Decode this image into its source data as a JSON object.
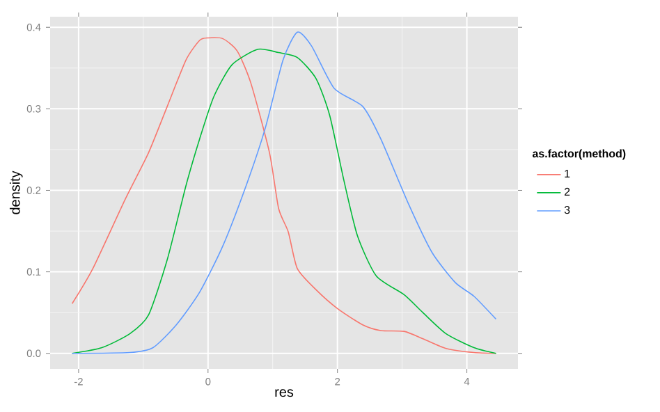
{
  "chart_data": {
    "type": "line",
    "xlabel": "res",
    "ylabel": "density",
    "legend_title": "as.factor(method)",
    "legend": "right",
    "grid": true,
    "xlim": [
      -2.44,
      4.79
    ],
    "ylim": [
      -0.019,
      0.413
    ],
    "xticks": [
      -2,
      0,
      2,
      4
    ],
    "yticks": [
      {
        "value": 0,
        "label": "0.0"
      },
      0.1,
      0.2,
      0.3,
      0.4
    ],
    "series": [
      {
        "name": "1",
        "color": "#f8766d",
        "x": [
          -2.1,
          -1.78,
          -1.28,
          -0.92,
          -0.63,
          -0.34,
          -0.13,
          0,
          0.23,
          0.45,
          0.66,
          0.95,
          1.09,
          1.24,
          1.38,
          1.67,
          2.0,
          2.39,
          2.67,
          3.03,
          3.32,
          3.68,
          4.11,
          4.45
        ],
        "values": [
          0.061,
          0.104,
          0.189,
          0.246,
          0.303,
          0.36,
          0.384,
          0.387,
          0.386,
          0.371,
          0.332,
          0.246,
          0.178,
          0.149,
          0.104,
          0.078,
          0.055,
          0.035,
          0.028,
          0.027,
          0.018,
          0.006,
          0.001,
          0
        ]
      },
      {
        "name": "2",
        "color": "#00ba38",
        "x": [
          -2.1,
          -1.64,
          -1.21,
          -0.92,
          -0.63,
          -0.34,
          -0.13,
          0.09,
          0.37,
          0.77,
          1.09,
          1.38,
          1.67,
          1.88,
          2.1,
          2.31,
          2.6,
          3.03,
          3.32,
          3.68,
          4.11,
          4.45
        ],
        "values": [
          0,
          0.007,
          0.024,
          0.047,
          0.115,
          0.206,
          0.263,
          0.315,
          0.354,
          0.373,
          0.369,
          0.363,
          0.337,
          0.292,
          0.212,
          0.144,
          0.095,
          0.072,
          0.05,
          0.024,
          0.007,
          0
        ]
      },
      {
        "name": "3",
        "color": "#619cff",
        "x": [
          -2.1,
          -1.21,
          -0.85,
          -0.49,
          -0.13,
          0.23,
          0.59,
          0.88,
          1.16,
          1.38,
          1.6,
          1.95,
          2.39,
          2.67,
          3.1,
          3.46,
          3.82,
          4.11,
          4.45
        ],
        "values": [
          0,
          0.001,
          0.007,
          0.035,
          0.075,
          0.132,
          0.206,
          0.275,
          0.36,
          0.394,
          0.377,
          0.325,
          0.303,
          0.263,
          0.183,
          0.124,
          0.087,
          0.07,
          0.042
        ]
      }
    ]
  }
}
